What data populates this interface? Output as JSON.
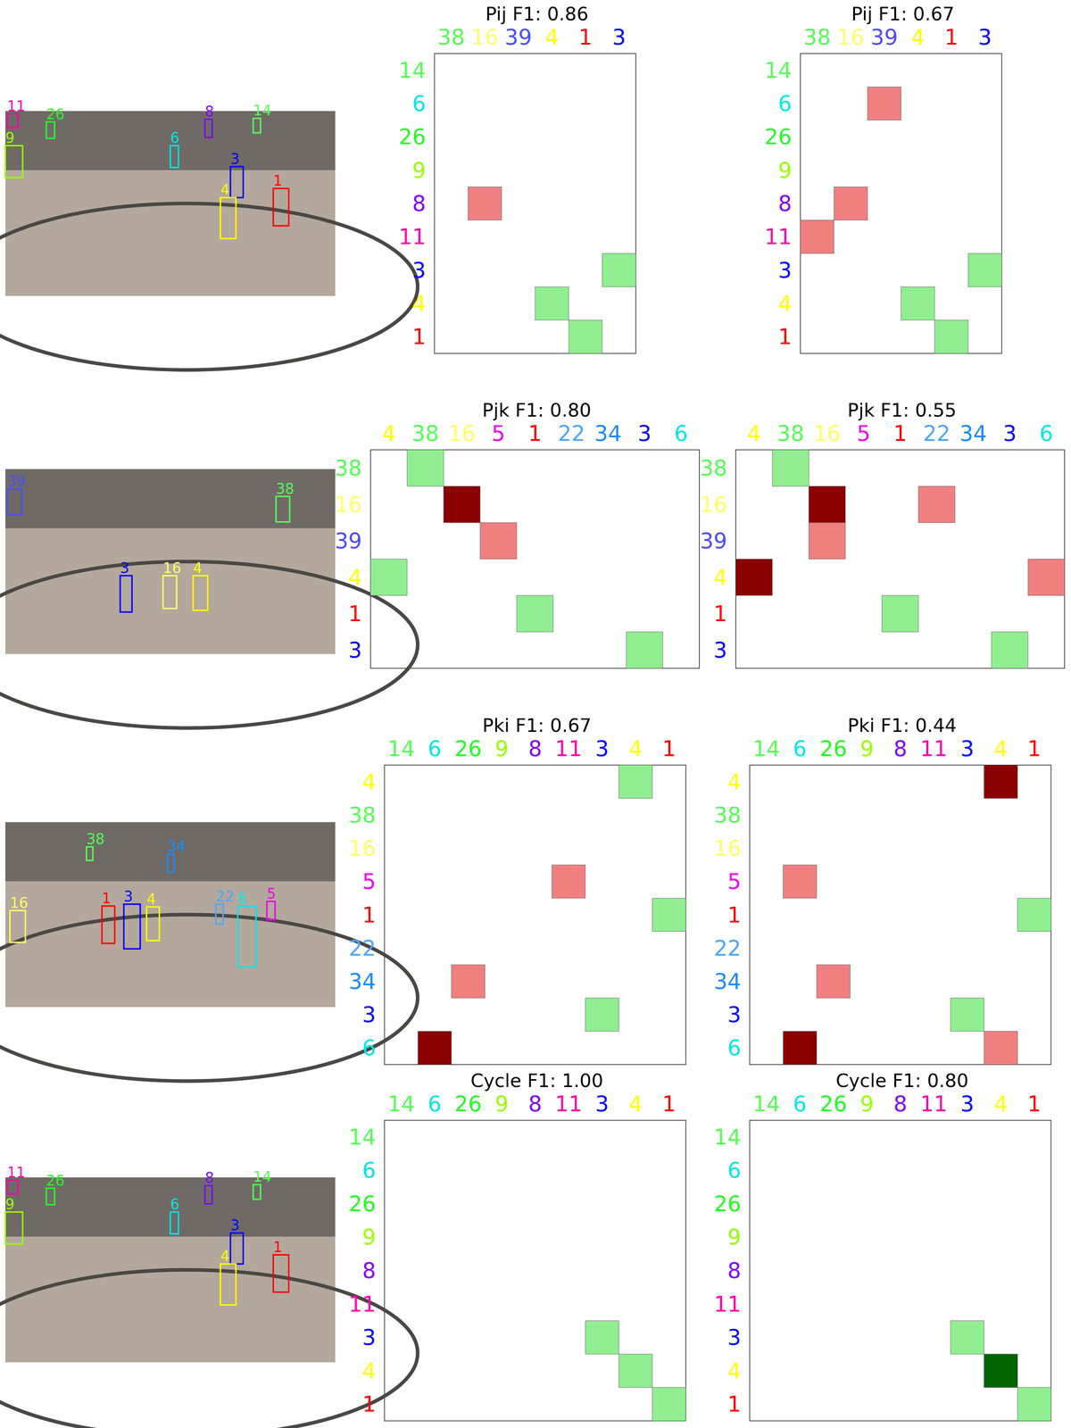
{
  "chart_data": [
    {
      "type": "heatmap",
      "title": "Pij F1: 0.86",
      "categories": [
        "38",
        "16",
        "39",
        "4",
        "1",
        "3"
      ],
      "category_colors": [
        "#55ff55",
        "#ffff66",
        "#4d4dff",
        "#ffff00",
        "#ff0000",
        "#0000ff"
      ],
      "y_categories": [
        "14",
        "6",
        "26",
        "9",
        "8",
        "11",
        "3",
        "4",
        "1"
      ],
      "y_category_colors": [
        "#55ff55",
        "#00e6e6",
        "#22ff22",
        "#99ff00",
        "#8000ff",
        "#ff00aa",
        "#0000ff",
        "#ffff00",
        "#ff0000"
      ],
      "cells": [
        {
          "x": "16",
          "y": "8",
          "color": "#f08080"
        },
        {
          "x": "3",
          "y": "3",
          "color": "#90ee90"
        },
        {
          "x": "4",
          "y": "4",
          "color": "#90ee90"
        },
        {
          "x": "1",
          "y": "1",
          "color": "#90ee90"
        }
      ]
    },
    {
      "type": "heatmap",
      "title": "Pij F1: 0.67",
      "categories": [
        "38",
        "16",
        "39",
        "4",
        "1",
        "3"
      ],
      "category_colors": [
        "#55ff55",
        "#ffff66",
        "#4d4dff",
        "#ffff00",
        "#ff0000",
        "#0000ff"
      ],
      "y_categories": [
        "14",
        "6",
        "26",
        "9",
        "8",
        "11",
        "3",
        "4",
        "1"
      ],
      "y_category_colors": [
        "#55ff55",
        "#00e6e6",
        "#22ff22",
        "#99ff00",
        "#8000ff",
        "#ff00aa",
        "#0000ff",
        "#ffff00",
        "#ff0000"
      ],
      "cells": [
        {
          "x": "39",
          "y": "6",
          "color": "#f08080"
        },
        {
          "x": "16",
          "y": "8",
          "color": "#f08080"
        },
        {
          "x": "38",
          "y": "11",
          "color": "#f08080"
        },
        {
          "x": "3",
          "y": "3",
          "color": "#90ee90"
        },
        {
          "x": "4",
          "y": "4",
          "color": "#90ee90"
        },
        {
          "x": "1",
          "y": "1",
          "color": "#90ee90"
        }
      ]
    },
    {
      "type": "heatmap",
      "title": "Pjk F1: 0.80",
      "categories": [
        "4",
        "38",
        "16",
        "5",
        "1",
        "22",
        "34",
        "3",
        "6"
      ],
      "category_colors": [
        "#ffff00",
        "#55ff55",
        "#ffff66",
        "#ee00ee",
        "#ff0000",
        "#4da6ff",
        "#1a8cff",
        "#0000ff",
        "#00e6e6"
      ],
      "y_categories": [
        "38",
        "16",
        "39",
        "4",
        "1",
        "3"
      ],
      "y_category_colors": [
        "#55ff55",
        "#ffff66",
        "#4d4dff",
        "#ffff00",
        "#ff0000",
        "#0000ff"
      ],
      "cells": [
        {
          "x": "38",
          "y": "38",
          "color": "#90ee90"
        },
        {
          "x": "16",
          "y": "16",
          "color": "#8b0000"
        },
        {
          "x": "5",
          "y": "39",
          "color": "#f08080"
        },
        {
          "x": "4",
          "y": "4",
          "color": "#90ee90"
        },
        {
          "x": "1",
          "y": "1",
          "color": "#90ee90"
        },
        {
          "x": "3",
          "y": "3",
          "color": "#90ee90"
        }
      ]
    },
    {
      "type": "heatmap",
      "title": "Pjk F1: 0.55",
      "categories": [
        "4",
        "38",
        "16",
        "5",
        "1",
        "22",
        "34",
        "3",
        "6"
      ],
      "category_colors": [
        "#ffff00",
        "#55ff55",
        "#ffff66",
        "#ee00ee",
        "#ff0000",
        "#4da6ff",
        "#1a8cff",
        "#0000ff",
        "#00e6e6"
      ],
      "y_categories": [
        "38",
        "16",
        "39",
        "4",
        "1",
        "3"
      ],
      "y_category_colors": [
        "#55ff55",
        "#ffff66",
        "#4d4dff",
        "#ffff00",
        "#ff0000",
        "#0000ff"
      ],
      "cells": [
        {
          "x": "38",
          "y": "38",
          "color": "#90ee90"
        },
        {
          "x": "16",
          "y": "16",
          "color": "#8b0000"
        },
        {
          "x": "22",
          "y": "16",
          "color": "#f08080"
        },
        {
          "x": "16",
          "y": "39",
          "color": "#f08080"
        },
        {
          "x": "4",
          "y": "4",
          "color": "#8b0000"
        },
        {
          "x": "6",
          "y": "4",
          "color": "#f08080"
        },
        {
          "x": "1",
          "y": "1",
          "color": "#90ee90"
        },
        {
          "x": "3",
          "y": "3",
          "color": "#90ee90"
        }
      ]
    },
    {
      "type": "heatmap",
      "title": "Pki F1: 0.67",
      "categories": [
        "14",
        "6",
        "26",
        "9",
        "8",
        "11",
        "3",
        "4",
        "1"
      ],
      "category_colors": [
        "#55ff55",
        "#00e6e6",
        "#22ff22",
        "#99ff00",
        "#8000ff",
        "#ff00aa",
        "#0000ff",
        "#ffff00",
        "#ff0000"
      ],
      "y_categories": [
        "4",
        "38",
        "16",
        "5",
        "1",
        "22",
        "34",
        "3",
        "6"
      ],
      "y_category_colors": [
        "#ffff00",
        "#55ff55",
        "#ffff66",
        "#ee00ee",
        "#ff0000",
        "#4da6ff",
        "#1a8cff",
        "#0000ff",
        "#00e6e6"
      ],
      "cells": [
        {
          "x": "4",
          "y": "4",
          "color": "#90ee90"
        },
        {
          "x": "11",
          "y": "5",
          "color": "#f08080"
        },
        {
          "x": "1",
          "y": "1",
          "color": "#90ee90"
        },
        {
          "x": "26",
          "y": "34",
          "color": "#f08080"
        },
        {
          "x": "3",
          "y": "3",
          "color": "#90ee90"
        },
        {
          "x": "6",
          "y": "6",
          "color": "#8b0000"
        }
      ]
    },
    {
      "type": "heatmap",
      "title": "Pki F1: 0.44",
      "categories": [
        "14",
        "6",
        "26",
        "9",
        "8",
        "11",
        "3",
        "4",
        "1"
      ],
      "category_colors": [
        "#55ff55",
        "#00e6e6",
        "#22ff22",
        "#99ff00",
        "#8000ff",
        "#ff00aa",
        "#0000ff",
        "#ffff00",
        "#ff0000"
      ],
      "y_categories": [
        "4",
        "38",
        "16",
        "5",
        "1",
        "22",
        "34",
        "3",
        "6"
      ],
      "y_category_colors": [
        "#ffff00",
        "#55ff55",
        "#ffff66",
        "#ee00ee",
        "#ff0000",
        "#4da6ff",
        "#1a8cff",
        "#0000ff",
        "#00e6e6"
      ],
      "cells": [
        {
          "x": "4",
          "y": "4",
          "color": "#8b0000"
        },
        {
          "x": "6",
          "y": "5",
          "color": "#f08080"
        },
        {
          "x": "1",
          "y": "1",
          "color": "#90ee90"
        },
        {
          "x": "26",
          "y": "34",
          "color": "#f08080"
        },
        {
          "x": "3",
          "y": "3",
          "color": "#90ee90"
        },
        {
          "x": "6",
          "y": "6",
          "color": "#8b0000"
        },
        {
          "x": "4",
          "y": "6",
          "color": "#f08080"
        }
      ]
    },
    {
      "type": "heatmap",
      "title": "Cycle F1: 1.00",
      "categories": [
        "14",
        "6",
        "26",
        "9",
        "8",
        "11",
        "3",
        "4",
        "1"
      ],
      "category_colors": [
        "#55ff55",
        "#00e6e6",
        "#22ff22",
        "#99ff00",
        "#8000ff",
        "#ff00aa",
        "#0000ff",
        "#ffff00",
        "#ff0000"
      ],
      "y_categories": [
        "14",
        "6",
        "26",
        "9",
        "8",
        "11",
        "3",
        "4",
        "1"
      ],
      "y_category_colors": [
        "#55ff55",
        "#00e6e6",
        "#22ff22",
        "#99ff00",
        "#8000ff",
        "#ff00aa",
        "#0000ff",
        "#ffff00",
        "#ff0000"
      ],
      "cells": [
        {
          "x": "3",
          "y": "3",
          "color": "#90ee90"
        },
        {
          "x": "4",
          "y": "4",
          "color": "#90ee90"
        },
        {
          "x": "1",
          "y": "1",
          "color": "#90ee90"
        }
      ]
    },
    {
      "type": "heatmap",
      "title": "Cycle F1: 0.80",
      "categories": [
        "14",
        "6",
        "26",
        "9",
        "8",
        "11",
        "3",
        "4",
        "1"
      ],
      "category_colors": [
        "#55ff55",
        "#00e6e6",
        "#22ff22",
        "#99ff00",
        "#8000ff",
        "#ff00aa",
        "#0000ff",
        "#ffff00",
        "#ff0000"
      ],
      "y_categories": [
        "14",
        "6",
        "26",
        "9",
        "8",
        "11",
        "3",
        "4",
        "1"
      ],
      "y_category_colors": [
        "#55ff55",
        "#00e6e6",
        "#22ff22",
        "#99ff00",
        "#8000ff",
        "#ff00aa",
        "#0000ff",
        "#ffff00",
        "#ff0000"
      ],
      "cells": [
        {
          "x": "3",
          "y": "3",
          "color": "#90ee90"
        },
        {
          "x": "4",
          "y": "4",
          "color": "#006400"
        },
        {
          "x": "1",
          "y": "1",
          "color": "#90ee90"
        }
      ]
    }
  ],
  "images": [
    {
      "boxes": [
        {
          "label": "11",
          "color": "#ff00aa"
        },
        {
          "label": "26",
          "color": "#22ff22"
        },
        {
          "label": "9",
          "color": "#99ff00"
        },
        {
          "label": "8",
          "color": "#8000ff"
        },
        {
          "label": "14",
          "color": "#55ff55"
        },
        {
          "label": "6",
          "color": "#00e6e6"
        },
        {
          "label": "3",
          "color": "#0000ff"
        },
        {
          "label": "4",
          "color": "#ffff00"
        },
        {
          "label": "1",
          "color": "#ff0000"
        }
      ]
    },
    {
      "boxes": [
        {
          "label": "39",
          "color": "#4d4dff"
        },
        {
          "label": "38",
          "color": "#55ff55"
        },
        {
          "label": "3",
          "color": "#0000ff"
        },
        {
          "label": "16",
          "color": "#ffff66"
        },
        {
          "label": "4",
          "color": "#ffff00"
        }
      ]
    },
    {
      "boxes": [
        {
          "label": "38",
          "color": "#55ff55"
        },
        {
          "label": "34",
          "color": "#1a8cff"
        },
        {
          "label": "16",
          "color": "#ffff66"
        },
        {
          "label": "1",
          "color": "#ff0000"
        },
        {
          "label": "3",
          "color": "#0000ff"
        },
        {
          "label": "4",
          "color": "#ffff00"
        },
        {
          "label": "22",
          "color": "#4da6ff"
        },
        {
          "label": "6",
          "color": "#00e6e6"
        },
        {
          "label": "5",
          "color": "#ee00ee"
        }
      ]
    },
    {
      "boxes": [
        {
          "label": "11",
          "color": "#ff00aa"
        },
        {
          "label": "26",
          "color": "#22ff22"
        },
        {
          "label": "9",
          "color": "#99ff00"
        },
        {
          "label": "8",
          "color": "#8000ff"
        },
        {
          "label": "14",
          "color": "#55ff55"
        },
        {
          "label": "6",
          "color": "#00e6e6"
        },
        {
          "label": "3",
          "color": "#0000ff"
        },
        {
          "label": "4",
          "color": "#ffff00"
        },
        {
          "label": "1",
          "color": "#ff0000"
        }
      ]
    }
  ]
}
